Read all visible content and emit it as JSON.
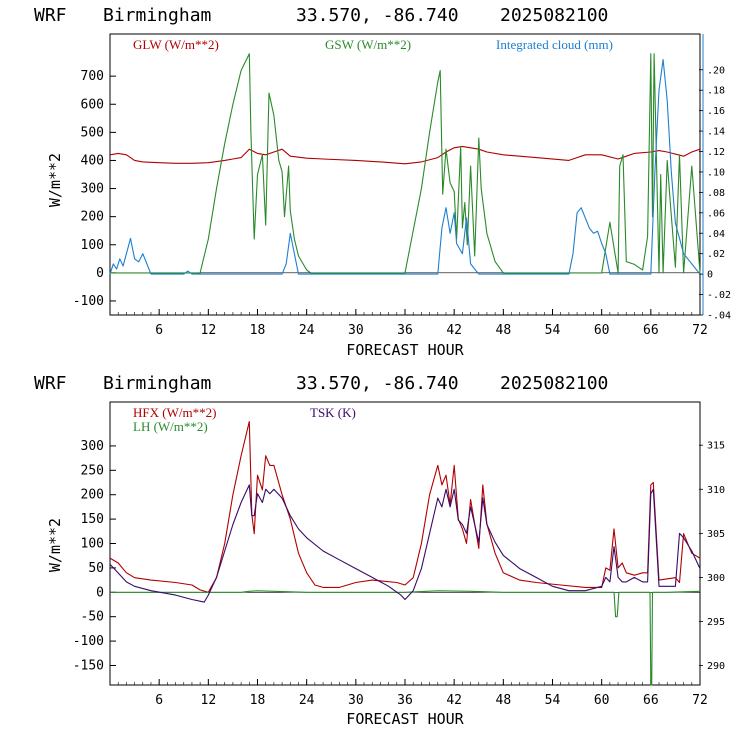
{
  "panels": [
    {
      "header": {
        "model": "WRF",
        "site": "Birmingham",
        "coords": "33.570, -86.740",
        "run": "2025082100"
      },
      "legend": [
        {
          "label": "GLW (W/m**2)",
          "color": "#b00000"
        },
        {
          "label": "GSW (W/m**2)",
          "color": "#2a8a2a"
        },
        {
          "label": "Integrated cloud (mm)",
          "color": "#1e7fd0"
        }
      ]
    },
    {
      "header": {
        "model": "WRF",
        "site": "Birmingham",
        "coords": "33.570, -86.740",
        "run": "2025082100"
      },
      "legend": [
        {
          "label": "HFX (W/m**2)",
          "color": "#b00000"
        },
        {
          "label": "LH  (W/m**2)",
          "color": "#2a8a2a"
        },
        {
          "label": "TSK (K)",
          "color": "#3a0a6a"
        }
      ]
    }
  ],
  "chart_data": [
    {
      "type": "line",
      "xlabel": "FORECAST HOUR",
      "ylabel": "W/m**2",
      "xlim": [
        0,
        72
      ],
      "ylim": [
        -150,
        850
      ],
      "x_ticks": [
        6,
        12,
        18,
        24,
        30,
        36,
        42,
        48,
        54,
        60,
        66,
        72
      ],
      "y_ticks": [
        -100,
        0,
        100,
        200,
        300,
        400,
        500,
        600,
        700
      ],
      "y2lim": [
        -0.04,
        0.235
      ],
      "y2_ticks": [
        ".20",
        ".18",
        ".16",
        ".14",
        ".12",
        ".10",
        ".08",
        ".06",
        ".04",
        ".02",
        "0",
        "-.02",
        "-.04"
      ],
      "series": [
        {
          "name": "GLW (W/m**2)",
          "color": "#b00000",
          "axis": "left",
          "x": [
            0,
            1,
            2,
            3,
            4,
            6,
            8,
            10,
            12,
            14,
            15,
            16,
            17,
            18,
            19,
            20,
            21,
            22,
            24,
            26,
            30,
            33,
            36,
            38,
            40,
            41,
            42,
            43,
            44,
            45,
            46,
            48,
            52,
            56,
            57,
            58,
            60,
            62,
            63,
            64,
            66,
            67,
            68,
            70,
            71,
            72
          ],
          "y": [
            420,
            425,
            420,
            400,
            395,
            392,
            390,
            390,
            392,
            400,
            405,
            410,
            440,
            425,
            420,
            430,
            440,
            415,
            408,
            405,
            400,
            395,
            388,
            395,
            410,
            430,
            445,
            450,
            445,
            440,
            430,
            420,
            410,
            400,
            410,
            420,
            420,
            405,
            415,
            425,
            430,
            435,
            430,
            415,
            430,
            440
          ]
        },
        {
          "name": "GSW (W/m**2)",
          "color": "#2a8a2a",
          "axis": "left",
          "x": [
            0,
            11,
            12,
            13,
            14,
            15,
            16,
            17,
            17.2,
            17.6,
            18,
            18.6,
            19,
            19.4,
            20,
            20.6,
            21,
            21.3,
            21.8,
            22,
            22.5,
            23,
            24,
            24.5,
            36,
            37,
            38,
            39,
            40,
            40.3,
            40.6,
            41,
            41.5,
            42,
            42.3,
            42.8,
            43,
            43.3,
            43.6,
            44,
            44.5,
            45,
            45.3,
            46,
            47,
            48,
            60,
            61,
            62,
            62.2,
            62.6,
            63,
            64,
            64.5,
            65,
            65.6,
            66,
            66.2,
            66.4,
            67,
            67.2,
            67.5,
            68,
            68.4,
            69,
            69.5,
            70,
            71,
            72
          ],
          "y": [
            0,
            0,
            120,
            300,
            460,
            600,
            720,
            780,
            500,
            120,
            350,
            420,
            170,
            640,
            560,
            400,
            360,
            200,
            380,
            220,
            120,
            60,
            10,
            0,
            0,
            150,
            300,
            500,
            680,
            720,
            280,
            440,
            320,
            290,
            120,
            450,
            160,
            250,
            100,
            380,
            60,
            480,
            300,
            140,
            40,
            0,
            0,
            180,
            0,
            380,
            420,
            40,
            30,
            20,
            10,
            130,
            780,
            200,
            780,
            0,
            350,
            0,
            400,
            240,
            20,
            420,
            0,
            380,
            0
          ]
        },
        {
          "name": "Integrated cloud (mm)",
          "color": "#1e7fd0",
          "axis": "right",
          "x": [
            0,
            0.4,
            0.8,
            1.2,
            1.6,
            2,
            2.5,
            3,
            3.5,
            4,
            5,
            9,
            9.5,
            10,
            21,
            21.5,
            22,
            22.5,
            23,
            40,
            40.5,
            41,
            41.5,
            42,
            42.3,
            43,
            43.5,
            44,
            45,
            56,
            56.5,
            57,
            57.5,
            58,
            58.5,
            59,
            59.5,
            60,
            60.5,
            61,
            66,
            66.5,
            67,
            67.5,
            68,
            68.5,
            69,
            70,
            72
          ],
          "y": [
            0,
            0.01,
            0.005,
            0.015,
            0.008,
            0.02,
            0.035,
            0.015,
            0.012,
            0.02,
            0,
            0,
            0.003,
            0,
            0,
            0.01,
            0.04,
            0.02,
            0,
            0,
            0.045,
            0.065,
            0.04,
            0.06,
            0.03,
            0.02,
            0.055,
            0.01,
            0,
            0,
            0.02,
            0.06,
            0.065,
            0.055,
            0.045,
            0.04,
            0.042,
            0.03,
            0.02,
            0,
            0,
            0.1,
            0.18,
            0.21,
            0.17,
            0.1,
            0.05,
            0.02,
            0
          ]
        }
      ]
    },
    {
      "type": "line",
      "xlabel": "FORECAST HOUR",
      "ylabel": "W/m**2",
      "xlim": [
        0,
        72
      ],
      "ylim": [
        -190,
        390
      ],
      "x_ticks": [
        6,
        12,
        18,
        24,
        30,
        36,
        42,
        48,
        54,
        60,
        66,
        72
      ],
      "y_ticks": [
        -150,
        -100,
        -50,
        0,
        50,
        100,
        150,
        200,
        250,
        300
      ],
      "y2lim": [
        287.8,
        319.9
      ],
      "y2_ticks": [
        290,
        295,
        300,
        305,
        310,
        315
      ],
      "series": [
        {
          "name": "HFX (W/m**2)",
          "color": "#b00000",
          "axis": "left",
          "x": [
            0,
            1,
            2,
            3,
            5,
            8,
            10,
            11,
            12,
            13,
            14,
            15,
            16,
            17,
            17.3,
            17.6,
            18,
            18.6,
            19,
            19.5,
            20,
            21,
            22,
            23,
            24,
            25,
            26,
            28,
            30,
            32,
            35,
            36,
            37,
            38,
            39,
            40,
            40.5,
            41,
            41.5,
            42,
            42.5,
            43,
            43.5,
            44,
            45,
            45.5,
            46,
            47,
            48,
            50,
            52,
            55,
            58,
            60,
            60.5,
            61,
            61.5,
            62,
            62.5,
            63,
            64,
            65,
            65.6,
            66,
            66.3,
            67,
            69,
            69.5,
            70,
            71,
            72
          ],
          "y": [
            70,
            60,
            40,
            30,
            25,
            20,
            15,
            5,
            0,
            30,
            100,
            200,
            280,
            350,
            160,
            120,
            240,
            210,
            280,
            260,
            260,
            200,
            150,
            80,
            40,
            15,
            10,
            10,
            20,
            25,
            20,
            15,
            30,
            100,
            200,
            260,
            220,
            240,
            180,
            260,
            150,
            130,
            100,
            190,
            90,
            220,
            140,
            80,
            40,
            25,
            20,
            15,
            10,
            10,
            50,
            45,
            130,
            50,
            60,
            40,
            35,
            40,
            40,
            220,
            225,
            25,
            30,
            20,
            120,
            80,
            70
          ]
        },
        {
          "name": "LH  (W/m**2)",
          "color": "#2a8a2a",
          "axis": "left",
          "x": [
            0,
            16,
            17,
            18,
            20,
            24,
            30,
            36,
            40,
            44,
            48,
            56,
            61.5,
            61.7,
            61.9,
            62.1,
            64,
            65.9,
            66.0,
            66.1,
            66.2,
            68,
            72
          ],
          "y": [
            0,
            0,
            2,
            3,
            2,
            0,
            0,
            0,
            3,
            2,
            0,
            0,
            0,
            -50,
            -50,
            0,
            0,
            0,
            -190,
            -190,
            0,
            0,
            2
          ]
        },
        {
          "name": "TSK (K)",
          "color": "#3a0a6a",
          "axis": "right",
          "x": [
            0,
            1,
            2,
            3,
            5,
            8,
            10,
            11.5,
            12,
            13,
            14,
            15,
            16,
            17,
            17.3,
            17.6,
            18,
            18.6,
            19,
            19.5,
            20,
            21,
            22,
            23,
            24,
            26,
            28,
            30,
            32,
            34,
            35.5,
            36,
            37,
            38,
            39,
            40,
            40.5,
            41,
            41.5,
            42,
            42.5,
            43,
            43.5,
            44,
            45,
            45.5,
            46,
            47,
            48,
            50,
            52,
            54,
            56,
            58,
            60,
            60.5,
            61,
            61.5,
            62,
            62.5,
            63,
            64,
            65,
            65.6,
            66,
            66.3,
            67,
            69,
            69.5,
            70,
            71,
            72
          ],
          "y": [
            301.5,
            300.5,
            299.5,
            299,
            298.5,
            298,
            297.5,
            297.2,
            298,
            300,
            303,
            306,
            308.5,
            310.5,
            307,
            307,
            309.5,
            308.5,
            310,
            309.5,
            310,
            309,
            307,
            305.5,
            304.5,
            303,
            302,
            301,
            300,
            299,
            298,
            297.5,
            298.5,
            301,
            305,
            309,
            308,
            310,
            308,
            310,
            306.5,
            306,
            305,
            308,
            304,
            309,
            306,
            304,
            302.5,
            301,
            300,
            299,
            298.5,
            298.5,
            299,
            300,
            299.5,
            303.5,
            300,
            299.5,
            299.5,
            300,
            299.5,
            299.5,
            309.5,
            310,
            299,
            299,
            305,
            304.5,
            303,
            301
          ]
        }
      ]
    }
  ]
}
